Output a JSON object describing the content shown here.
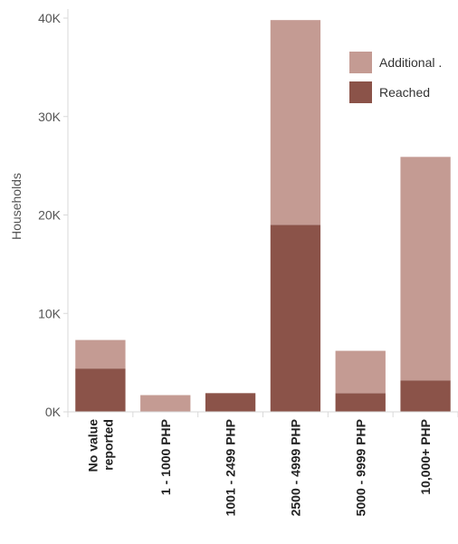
{
  "chart_data": {
    "type": "bar",
    "stacked": true,
    "categories": [
      "No value reported",
      "1 - 1000 PHP",
      "1001 - 2499 PHP",
      "2500 - 4999 PHP",
      "5000 - 9999 PHP",
      "10,000+ PHP"
    ],
    "category_lines": [
      [
        "No value",
        "reported"
      ],
      [
        "1 - 1000 PHP"
      ],
      [
        "1001 - 2499 PHP"
      ],
      [
        "2500 - 4999 PHP"
      ],
      [
        "5000 - 9999 PHP"
      ],
      [
        "10,000+ PHP"
      ]
    ],
    "series": [
      {
        "name": "Reached",
        "color": "#8b5349",
        "values": [
          4400,
          0,
          1900,
          19000,
          1900,
          3200
        ]
      },
      {
        "name": "Additional .",
        "color": "#c49b93",
        "values": [
          2900,
          1700,
          0,
          20800,
          4300,
          22700
        ]
      }
    ],
    "ylabel": "Households",
    "ylim": [
      0,
      40000
    ],
    "yticks": [
      0,
      10000,
      20000,
      30000,
      40000
    ],
    "ytick_labels": [
      "0K",
      "10K",
      "20K",
      "30K",
      "40K"
    ],
    "legend": {
      "position": "top-right",
      "entries": [
        {
          "label": "Additional .",
          "color": "#c49b93"
        },
        {
          "label": "Reached",
          "color": "#8b5349"
        }
      ]
    },
    "grid": false
  }
}
